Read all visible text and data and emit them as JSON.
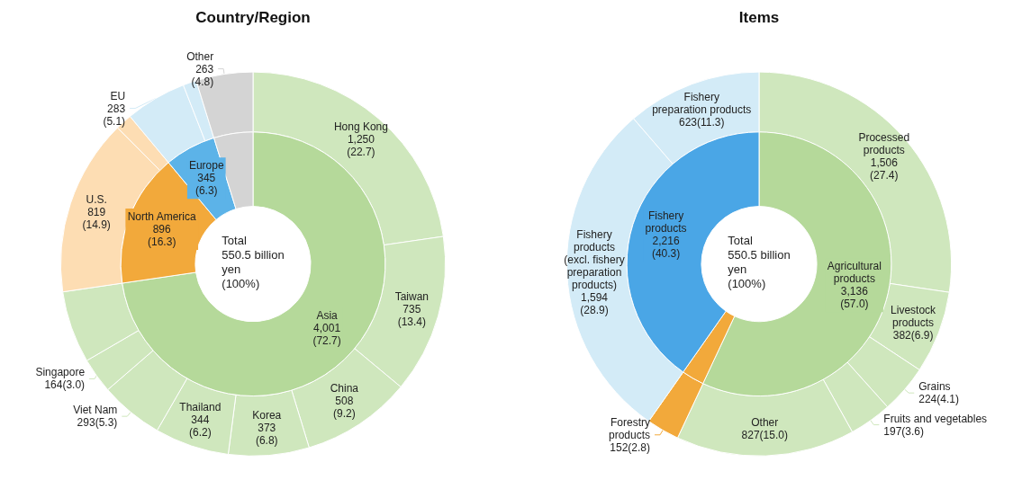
{
  "chart_data": [
    {
      "type": "donut",
      "annotations": [
        "Total\n550.5 billion\nyen\n(100%)"
      ],
      "categories": [
        "Asia",
        "North America",
        "Europe",
        null
      ],
      "values": [
        4001,
        896,
        345,
        263
      ],
      "colors": [
        "#b5d99a",
        "#f2a93b",
        "#5cb3e8",
        "#d4d4d4"
      ],
      "value_labels": [
        "4,001\n(72.7)",
        "896\n(16.3)",
        "345\n(6.3)",
        null
      ]
    },
    {
      "type": "donut",
      "title": "Country/Region",
      "categories": [
        "Hong Kong",
        "Taiwan",
        "China",
        "Korea",
        "Thailand",
        "Viet Nam",
        "Singapore",
        null,
        "U.S.",
        null,
        "EU",
        null,
        "Other"
      ],
      "values": [
        1250,
        735,
        508,
        373,
        344,
        293,
        164,
        334,
        819,
        77,
        283,
        62,
        263
      ],
      "colors": [
        "#cfe7bd",
        "#cfe7bd",
        "#cfe7bd",
        "#cfe7bd",
        "#cfe7bd",
        "#cfe7bd",
        "#cfe7bd",
        "#cfe7bd",
        "#fdddb3",
        "#fdddb3",
        "#d3ebf7",
        "#d3ebf7",
        "#d4d4d4"
      ],
      "value_labels": [
        "1,250\n(22.7)",
        "735\n(13.4)",
        "508\n(9.2)",
        "373\n(6.8)",
        "344\n(6.2)",
        "293(5.3)",
        "164(3.0)",
        null,
        "819\n(14.9)",
        null,
        "283\n(5.1)",
        null,
        "263\n(4.8)"
      ]
    },
    {
      "type": "donut",
      "annotations": [
        "Total\n550.5 billion\nyen\n(100%)"
      ],
      "categories": [
        "Agricultural\nproducts",
        null,
        "Fishery\nproducts"
      ],
      "values": [
        3136,
        152,
        2216
      ],
      "colors": [
        "#b5d99a",
        "#f2a93b",
        "#4aa6e6"
      ],
      "value_labels": [
        "3,136\n(57.0)",
        null,
        "2,216\n(40.3)"
      ]
    },
    {
      "type": "donut",
      "title": "Items",
      "categories": [
        "Processed\nproducts",
        "Livestock\nproducts",
        "Grains",
        "Fruits and vegetables",
        "Other",
        "Forestry\nproducts",
        "Fishery\nproducts\n(excl. fishery\npreparation\nproducts)",
        "Fishery\npreparation products"
      ],
      "values": [
        1506,
        382,
        224,
        197,
        827,
        152,
        1594,
        623
      ],
      "colors": [
        "#cfe7bd",
        "#cfe7bd",
        "#cfe7bd",
        "#cfe7bd",
        "#cfe7bd",
        "#f2a93b",
        "#d3ebf7",
        "#d3ebf7"
      ],
      "value_labels": [
        "1,506\n(27.4)",
        "382(6.9)",
        "224(4.1)",
        "197(3.6)",
        "827(15.0)",
        "152(2.8)",
        "1,594\n(28.9)",
        "623(11.3)"
      ]
    }
  ]
}
